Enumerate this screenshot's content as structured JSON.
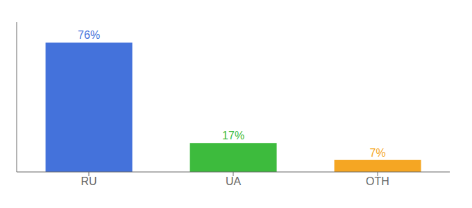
{
  "chart_data": {
    "type": "bar",
    "categories": [
      "RU",
      "UA",
      "OTH"
    ],
    "values": [
      76,
      17,
      7
    ],
    "value_labels": [
      "76%",
      "17%",
      "7%"
    ],
    "colors": [
      "#4472db",
      "#3dbb3d",
      "#f5a623"
    ],
    "ylim": [
      0,
      88
    ],
    "data_labels": true,
    "tick_labels": "x",
    "grid": false
  }
}
